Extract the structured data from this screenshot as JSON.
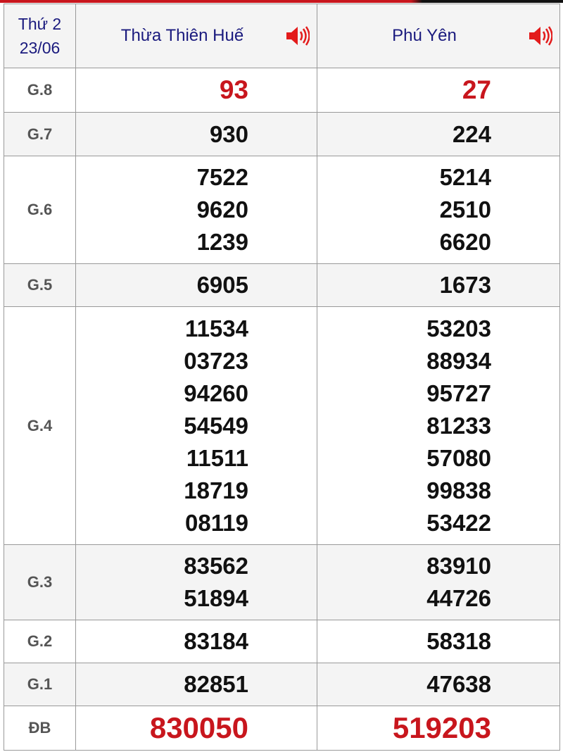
{
  "header": {
    "weekday": "Thứ 2",
    "date": "23/06",
    "provinces": [
      {
        "name": "Thừa Thiên Huế",
        "icon": "speaker-icon"
      },
      {
        "name": "Phú Yên",
        "icon": "speaker-icon"
      }
    ]
  },
  "colors": {
    "accent_red": "#c8161d",
    "header_blue": "#1a1a7e",
    "label_gray": "#555555"
  },
  "prizes": [
    {
      "label": "G.8",
      "highlight": true,
      "values": [
        [
          "93"
        ],
        [
          "27"
        ]
      ]
    },
    {
      "label": "G.7",
      "values": [
        [
          "930"
        ],
        [
          "224"
        ]
      ]
    },
    {
      "label": "G.6",
      "values": [
        [
          "7522",
          "9620",
          "1239"
        ],
        [
          "5214",
          "2510",
          "6620"
        ]
      ]
    },
    {
      "label": "G.5",
      "values": [
        [
          "6905"
        ],
        [
          "1673"
        ]
      ]
    },
    {
      "label": "G.4",
      "values": [
        [
          "11534",
          "03723",
          "94260",
          "54549",
          "11511",
          "18719",
          "08119"
        ],
        [
          "53203",
          "88934",
          "95727",
          "81233",
          "57080",
          "99838",
          "53422"
        ]
      ]
    },
    {
      "label": "G.3",
      "values": [
        [
          "83562",
          "51894"
        ],
        [
          "83910",
          "44726"
        ]
      ]
    },
    {
      "label": "G.2",
      "values": [
        [
          "83184"
        ],
        [
          "58318"
        ]
      ]
    },
    {
      "label": "G.1",
      "values": [
        [
          "82851"
        ],
        [
          "47638"
        ]
      ]
    },
    {
      "label": "ĐB",
      "highlight": true,
      "values": [
        [
          "830050"
        ],
        [
          "519203"
        ]
      ]
    }
  ]
}
